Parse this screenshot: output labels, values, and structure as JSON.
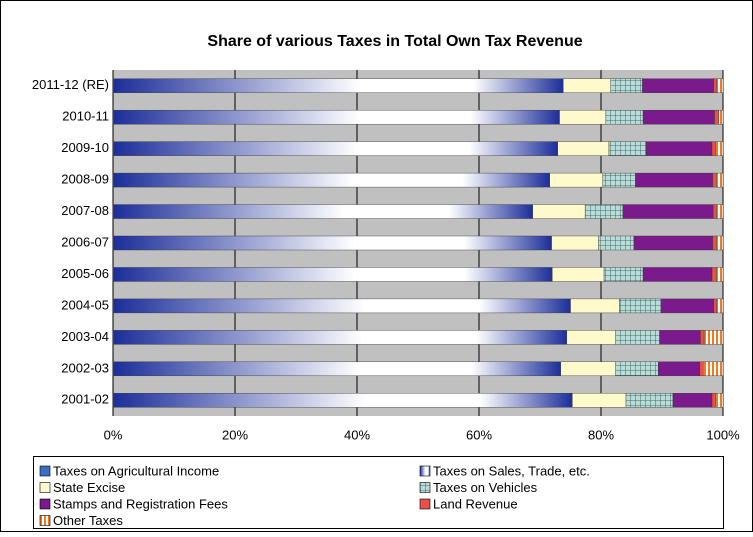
{
  "chart_data": {
    "type": "stacked_bar_horizontal",
    "title": "Share of various Taxes in Total Own Tax Revenue",
    "categories": [
      "2011-12 (RE)",
      "2010-11",
      "2009-10",
      "2008-09",
      "2007-08",
      "2006-07",
      "2005-06",
      "2004-05",
      "2003-04",
      "2002-03",
      "2001-02"
    ],
    "series": [
      {
        "name": "Taxes on Agricultural Income",
        "color": "#3a6fc4",
        "values": [
          0.1,
          0.1,
          0.1,
          0.1,
          0.1,
          0.1,
          0.1,
          0.1,
          0.1,
          0.1,
          0.1
        ]
      },
      {
        "name": "Taxes on Sales, Trade, etc.",
        "color": "#1c2e9a",
        "values": [
          73.7,
          73.1,
          72.8,
          71.5,
          68.7,
          71.8,
          71.9,
          74.9,
          74.3,
          73.3,
          75.2
        ]
      },
      {
        "name": "State Excise",
        "color": "#fffacc",
        "values": [
          7.8,
          7.6,
          8.4,
          8.7,
          8.6,
          7.7,
          8.5,
          8.0,
          8.0,
          9.0,
          8.8
        ]
      },
      {
        "name": "Taxes on Vehicles",
        "color": "#b8dcd8",
        "values": [
          5.2,
          6.1,
          6.1,
          5.4,
          6.2,
          5.8,
          6.4,
          6.9,
          7.2,
          7.0,
          7.7
        ]
      },
      {
        "name": "Stamps and Registration Fees",
        "color": "#7b1a8c",
        "values": [
          11.7,
          11.7,
          10.8,
          12.6,
          14.8,
          12.9,
          11.3,
          8.6,
          6.7,
          6.8,
          6.4
        ]
      },
      {
        "name": "Land Revenue",
        "color": "#e8504a",
        "values": [
          0.5,
          0.7,
          0.6,
          0.6,
          0.5,
          0.6,
          0.7,
          0.5,
          0.6,
          0.6,
          0.6
        ]
      },
      {
        "name": "Other Taxes",
        "color": "#f07a20",
        "values": [
          1.0,
          0.7,
          1.2,
          1.1,
          1.1,
          1.1,
          1.1,
          1.0,
          3.1,
          3.2,
          1.2
        ]
      }
    ],
    "xlim": [
      0,
      100
    ],
    "xticks": [
      {
        "value": 0,
        "label": "0%"
      },
      {
        "value": 20,
        "label": "20%"
      },
      {
        "value": 40,
        "label": "40%"
      },
      {
        "value": 60,
        "label": "60%"
      },
      {
        "value": 80,
        "label": "80%"
      },
      {
        "value": 100,
        "label": "100%"
      }
    ],
    "grid": true
  }
}
